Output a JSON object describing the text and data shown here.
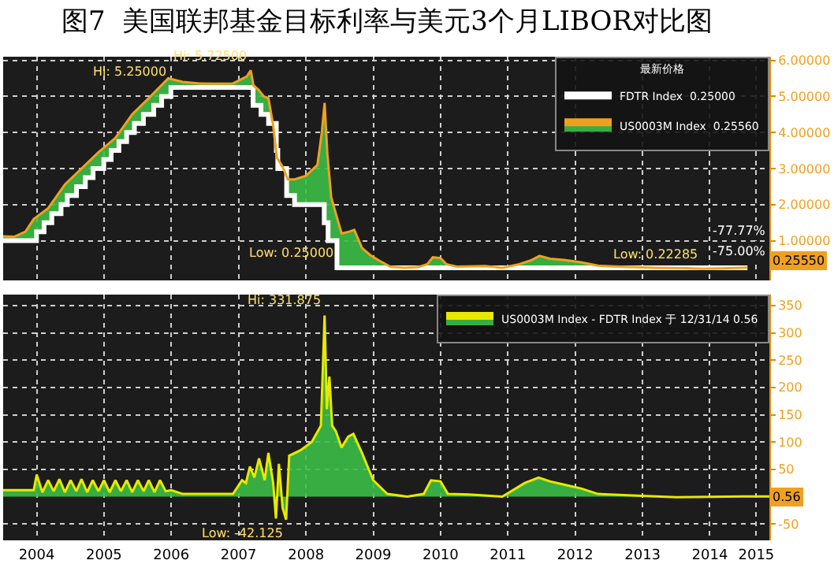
{
  "chart_data": [
    {
      "type": "line",
      "title": "图7  美国联邦基金目标利率与美元3个月LIBOR对比图",
      "legend_title": "最新价格",
      "legend": "top right",
      "grid": true,
      "tick_labels": "y",
      "xlim": [
        "2004-01-01",
        "2015-05-20"
      ],
      "xticks": [
        {
          "value": "2004-07-01",
          "label": null
        },
        {
          "value": "2005-07-01",
          "label": null
        },
        {
          "value": "2006-07-01",
          "label": null
        },
        {
          "value": "2007-07-01",
          "label": null
        },
        {
          "value": "2008-07-01",
          "label": null
        },
        {
          "value": "2009-07-01",
          "label": null
        },
        {
          "value": "2010-07-01",
          "label": null
        },
        {
          "value": "2011-07-01",
          "label": null
        },
        {
          "value": "2012-07-01",
          "label": null
        },
        {
          "value": "2013-07-01",
          "label": null
        },
        {
          "value": "2014-07-01",
          "label": null
        },
        {
          "value": "2015-03-10",
          "label": null
        }
      ],
      "ylim": [
        -0.1,
        6.1
      ],
      "yticks": [
        {
          "value": 1,
          "label": "1.00000"
        },
        {
          "value": 2,
          "label": "2.00000"
        },
        {
          "value": 3,
          "label": "3.00000"
        },
        {
          "value": 4,
          "label": "4.00000"
        },
        {
          "value": 5,
          "label": "5.00000"
        },
        {
          "value": 6,
          "label": "6.00000"
        }
      ],
      "series": [
        {
          "name": "US0003M Index  0.25560",
          "color": "#f0a020",
          "type": "line",
          "x": [
            "2004-01-01",
            "2004-03-01",
            "2004-05-01",
            "2004-06-15",
            "2004-09-01",
            "2004-12-01",
            "2005-03-01",
            "2005-06-01",
            "2005-09-01",
            "2005-12-01",
            "2006-03-01",
            "2006-06-15",
            "2006-09-01",
            "2006-12-01",
            "2007-03-01",
            "2007-06-01",
            "2007-08-15",
            "2007-09-05",
            "2007-09-20",
            "2007-10-15",
            "2007-11-15",
            "2007-12-10",
            "2008-01-05",
            "2008-01-25",
            "2008-02-20",
            "2008-03-25",
            "2008-05-01",
            "2008-07-01",
            "2008-09-01",
            "2008-09-25",
            "2008-10-10",
            "2008-10-25",
            "2008-11-15",
            "2008-12-10",
            "2009-01-10",
            "2009-02-20",
            "2009-03-20",
            "2009-05-01",
            "2009-06-15",
            "2009-08-01",
            "2009-10-01",
            "2009-12-15",
            "2010-03-01",
            "2010-04-20",
            "2010-05-20",
            "2010-07-01",
            "2010-08-01",
            "2010-10-01",
            "2011-03-01",
            "2011-06-01",
            "2011-09-01",
            "2011-11-01",
            "2011-12-20",
            "2012-02-15",
            "2012-05-01",
            "2012-08-01",
            "2012-11-01",
            "2013-03-01",
            "2013-09-01",
            "2014-03-01",
            "2014-05-15",
            "2014-09-01",
            "2015-01-21"
          ],
          "values": [
            1.12,
            1.11,
            1.25,
            1.6,
            1.9,
            2.56,
            3.0,
            3.45,
            3.85,
            4.5,
            4.95,
            5.5,
            5.4,
            5.36,
            5.35,
            5.36,
            5.55,
            5.725,
            5.3,
            5.2,
            5.0,
            4.95,
            4.2,
            3.3,
            3.1,
            2.7,
            2.7,
            2.8,
            3.1,
            4.0,
            4.82,
            3.4,
            2.2,
            1.75,
            1.2,
            1.25,
            1.3,
            0.8,
            0.6,
            0.45,
            0.28,
            0.25,
            0.27,
            0.35,
            0.54,
            0.52,
            0.35,
            0.28,
            0.3,
            0.25,
            0.35,
            0.45,
            0.58,
            0.5,
            0.47,
            0.4,
            0.31,
            0.28,
            0.25,
            0.24,
            0.223,
            0.235,
            0.2555
          ]
        },
        {
          "name": "FDTR Index  0.25000",
          "color": "#ffffff",
          "type": "step",
          "x": [
            "2004-01-01",
            "2004-06-30",
            "2004-08-10",
            "2004-09-21",
            "2004-11-10",
            "2004-12-14",
            "2005-02-02",
            "2005-03-22",
            "2005-05-03",
            "2005-06-30",
            "2005-08-09",
            "2005-09-20",
            "2005-11-01",
            "2005-12-13",
            "2006-01-31",
            "2006-03-28",
            "2006-05-10",
            "2006-06-29",
            "2007-09-18",
            "2007-10-31",
            "2007-12-11",
            "2008-01-22",
            "2008-01-30",
            "2008-03-18",
            "2008-04-30",
            "2008-10-08",
            "2008-10-29",
            "2008-12-16",
            "2015-01-21"
          ],
          "values": [
            1.0,
            1.25,
            1.5,
            1.75,
            2.0,
            2.25,
            2.5,
            2.75,
            3.0,
            3.25,
            3.5,
            3.75,
            4.0,
            4.25,
            4.5,
            4.75,
            5.0,
            5.25,
            4.75,
            4.5,
            4.25,
            3.5,
            3.0,
            2.25,
            2.0,
            1.5,
            1.0,
            0.25,
            0.25
          ]
        }
      ],
      "annotations": [
        {
          "text": "Hi: 5.72500",
          "x": "2007-09-05",
          "y": 5.725
        },
        {
          "text": "Hi: 5.25000",
          "x": "2006-06-29",
          "y": 5.25
        },
        {
          "text": "Low: 0.25000",
          "x": "2008-12-16",
          "y": 0.25
        },
        {
          "text": "Low: 0.22285",
          "x": "2014-05-15",
          "y": 0.223
        },
        "-77.77%",
        "-75.00%",
        "0.25550"
      ]
    },
    {
      "type": "area",
      "legend": "top right",
      "grid": true,
      "xlim": [
        "2004-01-01",
        "2015-05-20"
      ],
      "xticks": [
        {
          "value": "2004-07-01",
          "label": "2004"
        },
        {
          "value": "2005-07-01",
          "label": "2005"
        },
        {
          "value": "2006-07-01",
          "label": "2006"
        },
        {
          "value": "2007-07-01",
          "label": "2007"
        },
        {
          "value": "2008-07-01",
          "label": "2008"
        },
        {
          "value": "2009-07-01",
          "label": "2009"
        },
        {
          "value": "2010-07-01",
          "label": "2010"
        },
        {
          "value": "2011-07-01",
          "label": "2011"
        },
        {
          "value": "2012-07-01",
          "label": "2012"
        },
        {
          "value": "2013-07-01",
          "label": "2013"
        },
        {
          "value": "2014-07-01",
          "label": "2014"
        },
        {
          "value": "2015-03-10",
          "label": "2015"
        }
      ],
      "ylim": [
        -80,
        370
      ],
      "yticks": [
        -50,
        50,
        100,
        150,
        200,
        250,
        300,
        350
      ],
      "series": [
        {
          "name": "US0003M Index - FDTR Index 于 12/31/14 0.56",
          "color": "#e8e800",
          "x": [
            "2004-01-01",
            "2004-06-15",
            "2004-07-01",
            "2004-08-01",
            "2004-09-01",
            "2004-10-01",
            "2004-11-01",
            "2004-12-01",
            "2005-01-01",
            "2005-02-01",
            "2005-03-01",
            "2005-04-01",
            "2005-05-01",
            "2005-06-01",
            "2005-07-01",
            "2005-08-01",
            "2005-09-01",
            "2005-10-01",
            "2005-11-01",
            "2005-12-01",
            "2006-01-01",
            "2006-02-01",
            "2006-03-01",
            "2006-04-01",
            "2006-05-01",
            "2006-06-01",
            "2006-07-01",
            "2006-09-01",
            "2007-06-01",
            "2007-07-20",
            "2007-08-10",
            "2007-09-01",
            "2007-09-25",
            "2007-10-20",
            "2007-11-20",
            "2007-12-10",
            "2008-01-05",
            "2008-01-20",
            "2008-02-05",
            "2008-02-25",
            "2008-03-15",
            "2008-04-01",
            "2008-06-01",
            "2008-08-01",
            "2008-09-20",
            "2008-10-10",
            "2008-10-22",
            "2008-11-05",
            "2008-11-20",
            "2008-12-10",
            "2009-01-10",
            "2009-02-15",
            "2009-03-15",
            "2009-05-01",
            "2009-07-01",
            "2009-09-15",
            "2010-01-01",
            "2010-04-01",
            "2010-05-10",
            "2010-07-01",
            "2010-08-10",
            "2010-12-01",
            "2011-06-01",
            "2011-10-01",
            "2011-12-15",
            "2012-02-15",
            "2012-05-01",
            "2012-08-01",
            "2012-11-01",
            "2013-06-01",
            "2014-01-01",
            "2014-12-31",
            "2015-05-20"
          ],
          "values": [
            12,
            12,
            40,
            8,
            30,
            10,
            32,
            8,
            30,
            10,
            32,
            8,
            30,
            10,
            30,
            8,
            30,
            10,
            30,
            8,
            30,
            10,
            30,
            8,
            30,
            10,
            12,
            5,
            5,
            30,
            25,
            55,
            35,
            70,
            30,
            80,
            25,
            -40,
            60,
            -20,
            -42.125,
            75,
            85,
            100,
            130,
            331.875,
            160,
            220,
            130,
            120,
            90,
            110,
            115,
            80,
            30,
            5,
            0,
            5,
            30,
            28,
            5,
            4,
            0,
            25,
            35,
            28,
            22,
            15,
            5,
            2,
            -1,
            0.56,
            0.56
          ]
        }
      ],
      "annotations": [
        {
          "text": "Hi: 331.875",
          "x": "2008-10-10",
          "y": 331.875
        },
        {
          "text": "Low: -42.125",
          "x": "2008-03-15",
          "y": -42.125
        },
        {
          "text": "0.56",
          "x": "2015-05-20",
          "y": 0.56
        }
      ]
    }
  ]
}
